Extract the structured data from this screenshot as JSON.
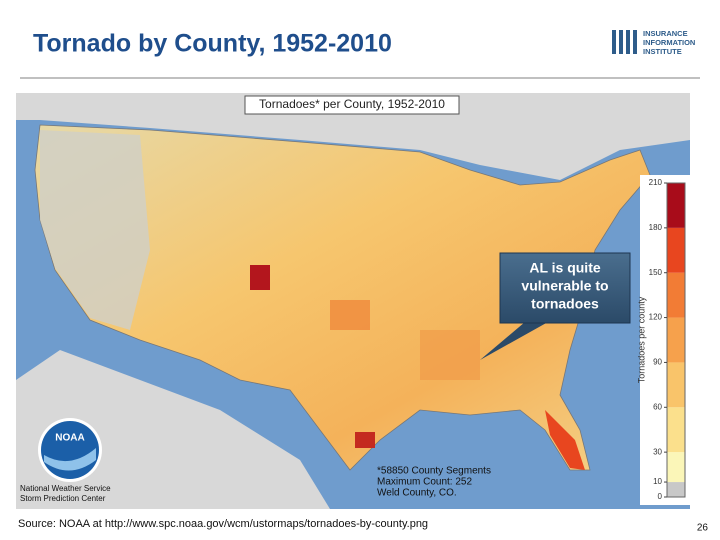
{
  "header": {
    "title": "Tornado by County, 1952-2010",
    "logo": [
      "INSURANCE",
      "INFORMATION",
      "INSTITUTE"
    ]
  },
  "map": {
    "title": "Tornadoes* per County, 1952-2010",
    "callout": [
      "AL is quite",
      "vulnerable to",
      "tornadoes"
    ],
    "footnote": [
      "*58850 County Segments",
      "Maximum Count: 252",
      "Weld County, CO."
    ],
    "agency": {
      "logo": "NOAA",
      "lines": [
        "National Weather Service",
        "Storm Prediction Center"
      ]
    },
    "colorbar": {
      "label": "Tornadoes per county",
      "lim": [
        0,
        210
      ],
      "ticks": [
        0,
        10,
        30,
        60,
        90,
        120,
        150,
        180,
        210
      ],
      "colors": [
        "#c8c8c8",
        "#fbf6b8",
        "#fbe08c",
        "#f9c46a",
        "#f6a14c",
        "#f27c35",
        "#e8461f",
        "#a80c1a"
      ]
    }
  },
  "footer": {
    "source": "Source: NOAA at http://www.spc.noaa.gov/wcm/ustormaps/tornadoes-by-county.png",
    "page": "26"
  }
}
